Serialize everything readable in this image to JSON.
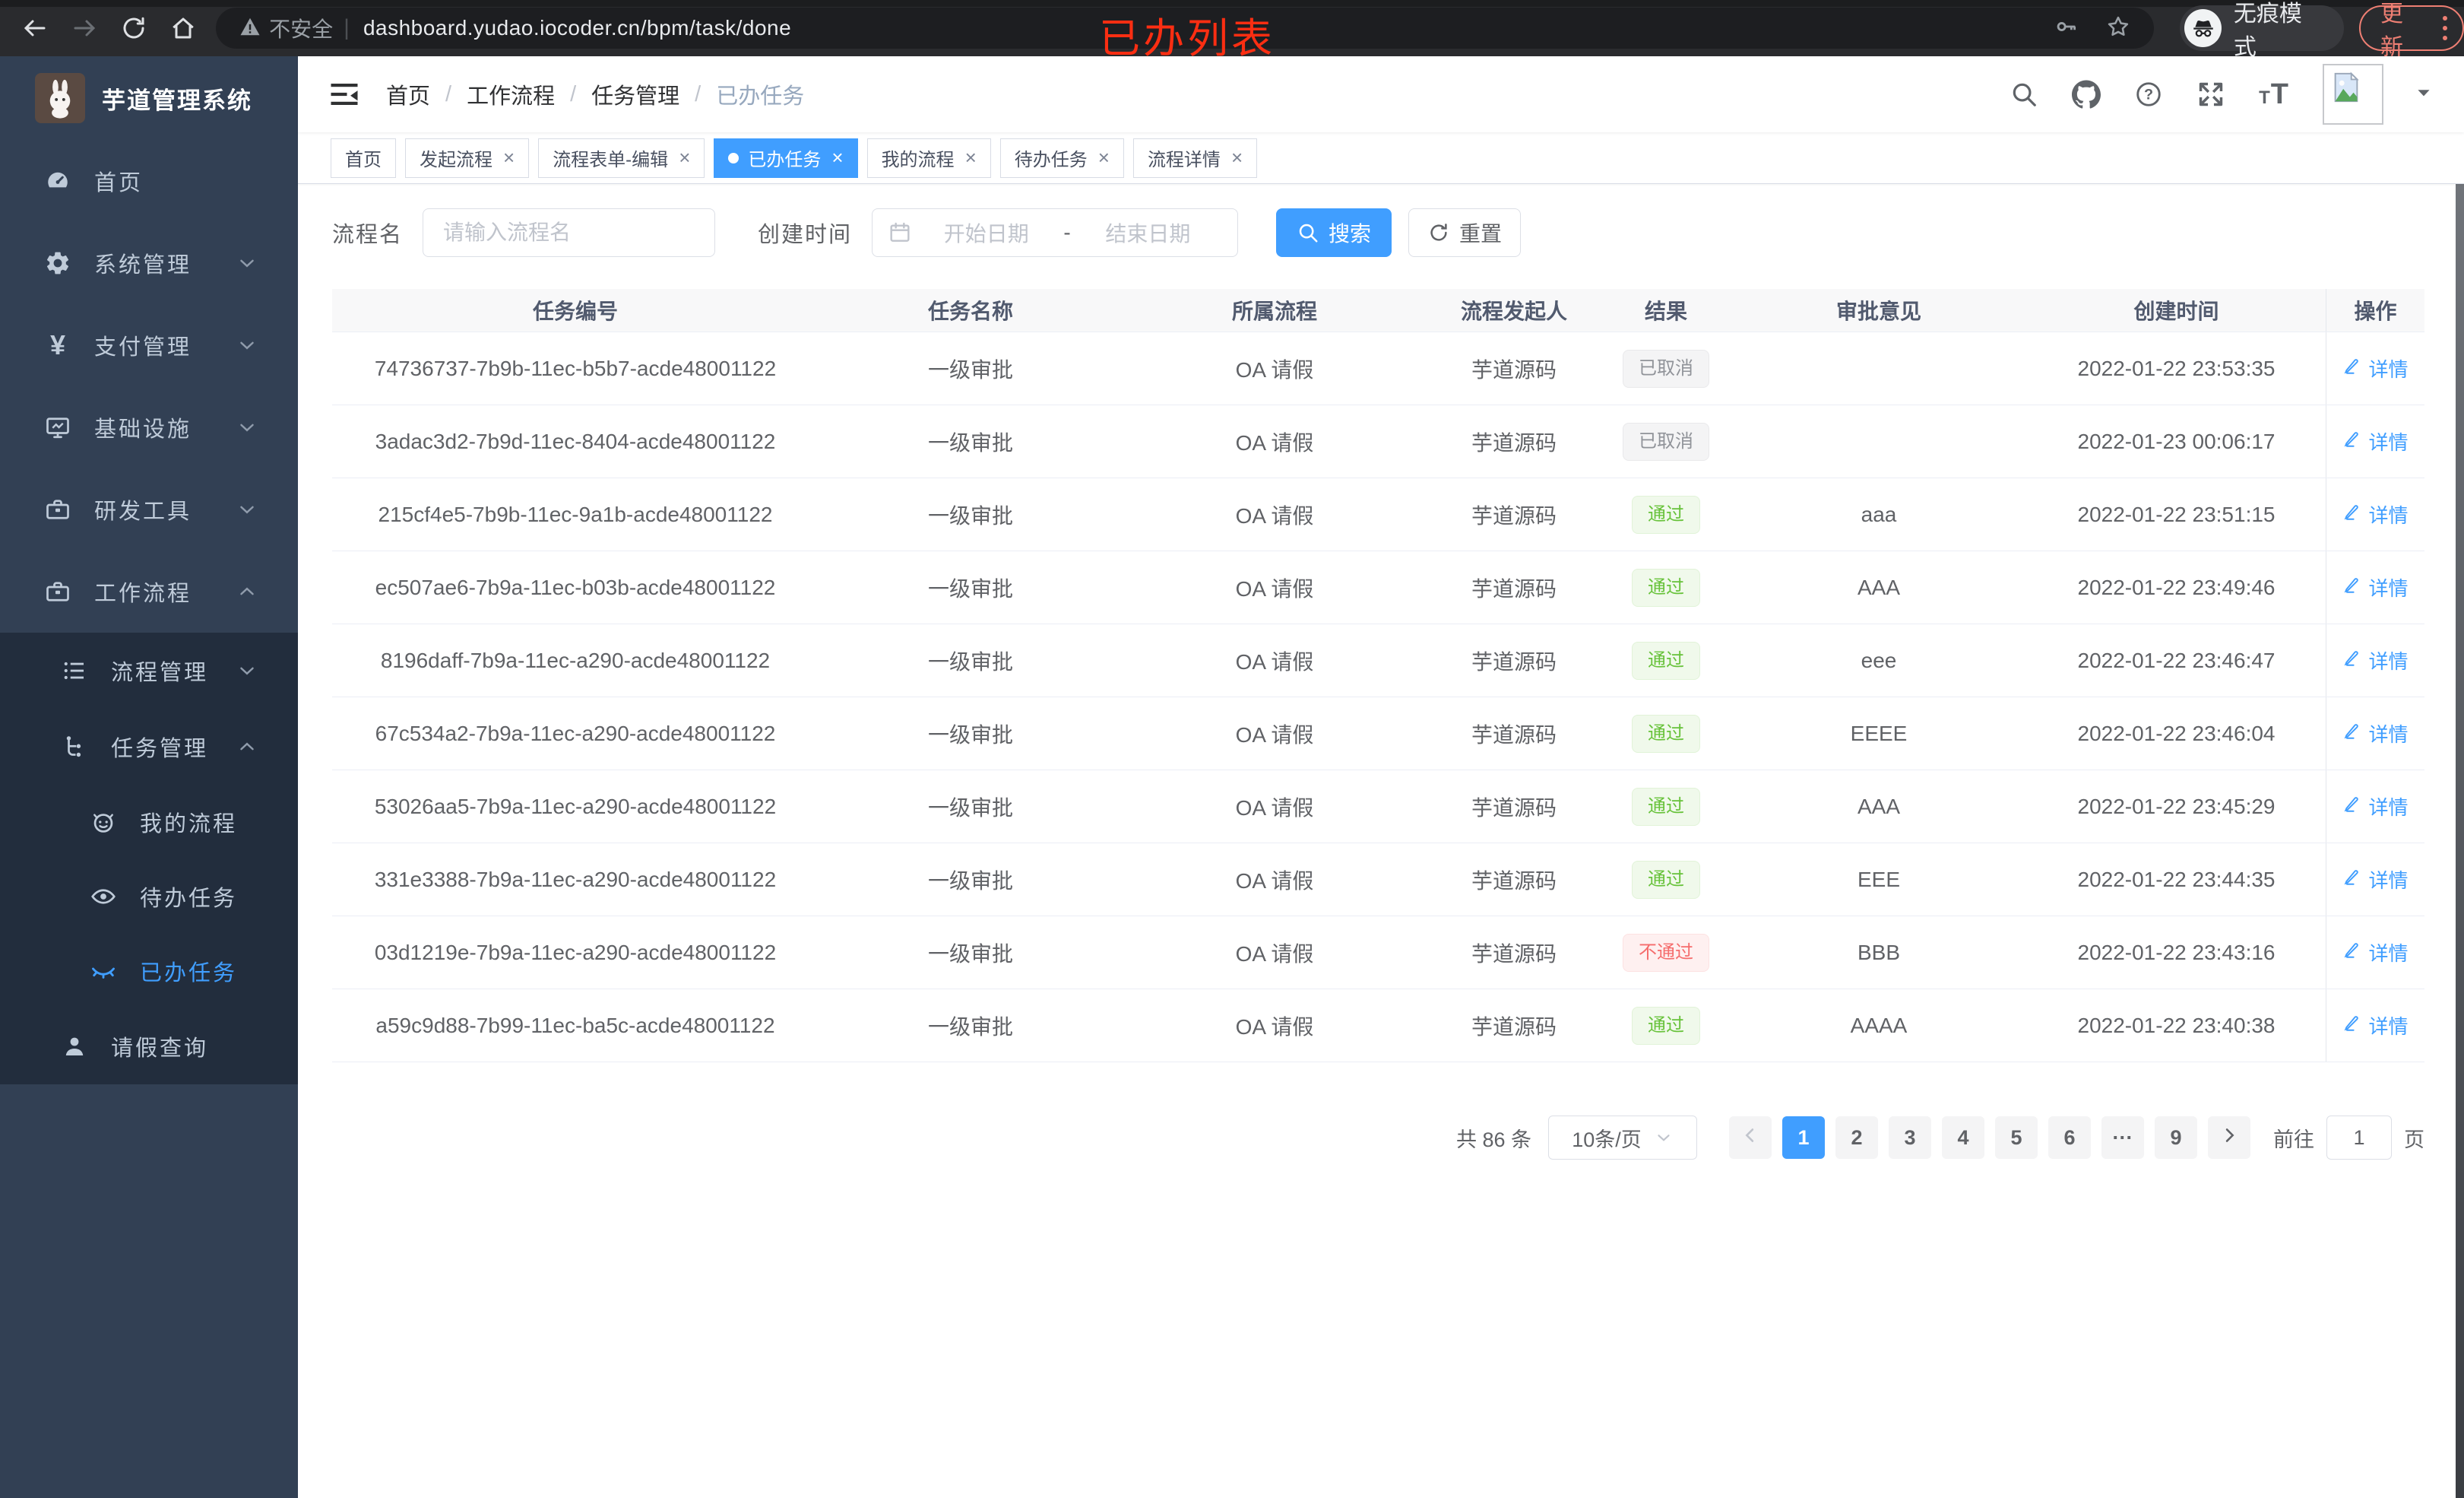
{
  "browser": {
    "security_warning": "不安全",
    "url": "dashboard.yudao.iocoder.cn/bpm/task/done",
    "incognito_label": "无痕模式",
    "update_label": "更新"
  },
  "annotation": {
    "text": "已办列表",
    "color": "#fb2e12"
  },
  "sidebar": {
    "title": "芋道管理系统",
    "items": [
      {
        "label": "首页",
        "icon": "dashboard-icon",
        "level": 1,
        "submenu": false,
        "chevron": null,
        "active": false
      },
      {
        "label": "系统管理",
        "icon": "gear-icon",
        "level": 1,
        "submenu": false,
        "chevron": "down",
        "active": false
      },
      {
        "label": "支付管理",
        "icon": "yen-icon",
        "level": 1,
        "submenu": false,
        "chevron": "down",
        "active": false
      },
      {
        "label": "基础设施",
        "icon": "monitor-icon",
        "level": 1,
        "submenu": false,
        "chevron": "down",
        "active": false
      },
      {
        "label": "研发工具",
        "icon": "toolbox-icon",
        "level": 1,
        "submenu": false,
        "chevron": "down",
        "active": false
      },
      {
        "label": "工作流程",
        "icon": "toolbox-icon",
        "level": 1,
        "submenu": false,
        "chevron": "up",
        "active": false
      },
      {
        "label": "流程管理",
        "icon": "process-list-icon",
        "level": 2,
        "submenu": true,
        "chevron": "down",
        "active": false
      },
      {
        "label": "任务管理",
        "icon": "task-tree-icon",
        "level": 2,
        "submenu": true,
        "chevron": "up",
        "active": false
      },
      {
        "label": "我的流程",
        "icon": "robot-face-icon",
        "level": 3,
        "submenu": true,
        "chevron": null,
        "active": false
      },
      {
        "label": "待办任务",
        "icon": "eye-open-icon",
        "level": 3,
        "submenu": true,
        "chevron": null,
        "active": false
      },
      {
        "label": "已办任务",
        "icon": "eye-closed-icon",
        "level": 3,
        "submenu": true,
        "chevron": null,
        "active": true
      },
      {
        "label": "请假查询",
        "icon": "person-icon",
        "level": 2,
        "submenu": true,
        "chevron": null,
        "active": false
      }
    ]
  },
  "header": {
    "breadcrumb": [
      "首页",
      "工作流程",
      "任务管理",
      "已办任务"
    ]
  },
  "tabs": [
    {
      "label": "首页",
      "closable": false,
      "active": false
    },
    {
      "label": "发起流程",
      "closable": true,
      "active": false
    },
    {
      "label": "流程表单-编辑",
      "closable": true,
      "active": false
    },
    {
      "label": "已办任务",
      "closable": true,
      "active": true
    },
    {
      "label": "我的流程",
      "closable": true,
      "active": false
    },
    {
      "label": "待办任务",
      "closable": true,
      "active": false
    },
    {
      "label": "流程详情",
      "closable": true,
      "active": false
    }
  ],
  "filters": {
    "name_label": "流程名",
    "name_placeholder": "请输入流程名",
    "time_label": "创建时间",
    "start_placeholder": "开始日期",
    "range_separator": "-",
    "end_placeholder": "结束日期",
    "search_label": "搜索",
    "reset_label": "重置"
  },
  "table": {
    "headers": [
      "任务编号",
      "任务名称",
      "所属流程",
      "流程发起人",
      "结果",
      "审批意见",
      "创建时间",
      "操作"
    ],
    "action_label": "详情",
    "rows": [
      {
        "id": "74736737-7b9b-11ec-b5b7-acde48001122",
        "name": "一级审批",
        "process": "OA 请假",
        "initiator": "芋道源码",
        "result": "已取消",
        "result_type": "info",
        "comment": "",
        "created": "2022-01-22 23:53:35"
      },
      {
        "id": "3adac3d2-7b9d-11ec-8404-acde48001122",
        "name": "一级审批",
        "process": "OA 请假",
        "initiator": "芋道源码",
        "result": "已取消",
        "result_type": "info",
        "comment": "",
        "created": "2022-01-23 00:06:17"
      },
      {
        "id": "215cf4e5-7b9b-11ec-9a1b-acde48001122",
        "name": "一级审批",
        "process": "OA 请假",
        "initiator": "芋道源码",
        "result": "通过",
        "result_type": "success",
        "comment": "aaa",
        "created": "2022-01-22 23:51:15"
      },
      {
        "id": "ec507ae6-7b9a-11ec-b03b-acde48001122",
        "name": "一级审批",
        "process": "OA 请假",
        "initiator": "芋道源码",
        "result": "通过",
        "result_type": "success",
        "comment": "AAA",
        "created": "2022-01-22 23:49:46"
      },
      {
        "id": "8196daff-7b9a-11ec-a290-acde48001122",
        "name": "一级审批",
        "process": "OA 请假",
        "initiator": "芋道源码",
        "result": "通过",
        "result_type": "success",
        "comment": "eee",
        "created": "2022-01-22 23:46:47"
      },
      {
        "id": "67c534a2-7b9a-11ec-a290-acde48001122",
        "name": "一级审批",
        "process": "OA 请假",
        "initiator": "芋道源码",
        "result": "通过",
        "result_type": "success",
        "comment": "EEEE",
        "created": "2022-01-22 23:46:04"
      },
      {
        "id": "53026aa5-7b9a-11ec-a290-acde48001122",
        "name": "一级审批",
        "process": "OA 请假",
        "initiator": "芋道源码",
        "result": "通过",
        "result_type": "success",
        "comment": "AAA",
        "created": "2022-01-22 23:45:29"
      },
      {
        "id": "331e3388-7b9a-11ec-a290-acde48001122",
        "name": "一级审批",
        "process": "OA 请假",
        "initiator": "芋道源码",
        "result": "通过",
        "result_type": "success",
        "comment": "EEE",
        "created": "2022-01-22 23:44:35"
      },
      {
        "id": "03d1219e-7b9a-11ec-a290-acde48001122",
        "name": "一级审批",
        "process": "OA 请假",
        "initiator": "芋道源码",
        "result": "不通过",
        "result_type": "danger",
        "comment": "BBB",
        "created": "2022-01-22 23:43:16"
      },
      {
        "id": "a59c9d88-7b99-11ec-ba5c-acde48001122",
        "name": "一级审批",
        "process": "OA 请假",
        "initiator": "芋道源码",
        "result": "通过",
        "result_type": "success",
        "comment": "AAAA",
        "created": "2022-01-22 23:40:38"
      }
    ]
  },
  "pagination": {
    "total_text": "共 86 条",
    "page_size": "10条/页",
    "pages": [
      "1",
      "2",
      "3",
      "4",
      "5",
      "6",
      "···",
      "9"
    ],
    "active_page": "1",
    "goto_label": "前往",
    "goto_value": "1",
    "goto_suffix": "页"
  },
  "colors": {
    "accent": "#409eff",
    "sidebar_bg": "#324054",
    "submenu_bg": "#222d3d",
    "success": "#67c23a",
    "danger": "#f56c6c",
    "info": "#909399",
    "update_coral": "#ee7f73",
    "annotation_red": "#fb2e12"
  }
}
